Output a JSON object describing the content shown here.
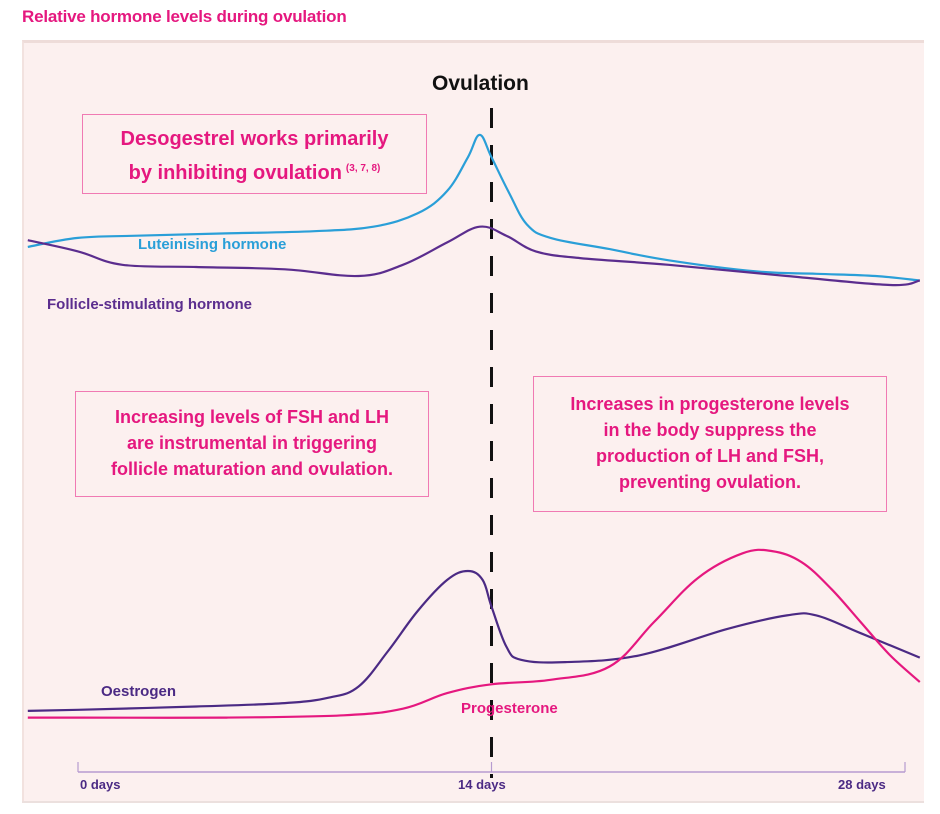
{
  "chart_data": {
    "type": "line",
    "title": "Relative hormone levels during ovulation",
    "xlabel": "",
    "ylabel": "",
    "xlim": [
      0,
      28
    ],
    "ylim": [
      0,
      100
    ],
    "grid": false,
    "x_ticks": [
      {
        "value": 0,
        "label": "0 days"
      },
      {
        "value": 14,
        "label": "14 days"
      },
      {
        "value": 28,
        "label": "28 days"
      }
    ],
    "annotation_line": {
      "x": 14,
      "label": "Ovulation",
      "style": "dashed"
    },
    "callouts": [
      {
        "lines": [
          "Desogestrel works primarily",
          "by inhibiting ovulation"
        ],
        "superscript": "(3, 7, 8)"
      },
      {
        "lines": [
          "Increasing levels of FSH and LH",
          "are instrumental in triggering",
          "follicle maturation and ovulation."
        ]
      },
      {
        "lines": [
          "Increases in progesterone levels",
          "in the body suppress the",
          "production of LH and FSH,",
          "preventing ovulation."
        ]
      }
    ],
    "series": [
      {
        "name": "Luteinising hormone",
        "color": "#2a9fd8",
        "group": "upper",
        "x": [
          -1.7,
          0,
          2,
          5,
          8,
          10,
          11.5,
          12.5,
          13.2,
          13.6,
          14,
          14.6,
          15.2,
          16,
          18,
          20,
          23,
          25,
          27,
          28.5
        ],
        "y": [
          38,
          42,
          43,
          44,
          45,
          47,
          53,
          63,
          78,
          88,
          78,
          62,
          48,
          42,
          37,
          32,
          27,
          26,
          25,
          23
        ]
      },
      {
        "name": "Follicle-stimulating hormone",
        "color": "#5b2d8e",
        "group": "upper",
        "x": [
          -1.7,
          0,
          1.5,
          4,
          7,
          9.5,
          11,
          12.5,
          13.6,
          14.5,
          15.5,
          17,
          20,
          24,
          27.5,
          28.5
        ],
        "y": [
          41,
          36,
          30,
          29,
          28,
          25,
          30,
          40,
          47,
          43,
          36,
          33,
          30,
          25,
          21,
          23
        ]
      },
      {
        "name": "Oestrogen",
        "color": "#4b2a84",
        "group": "lower",
        "x": [
          -1.7,
          0,
          4,
          7,
          8.5,
          9.5,
          10.5,
          11.5,
          12.5,
          13.2,
          13.7,
          14,
          14.5,
          15,
          16.5,
          19,
          22,
          24,
          25,
          26.5,
          28.5
        ],
        "y": [
          5,
          5.5,
          7,
          8.5,
          11,
          16,
          32,
          50,
          64,
          68,
          64,
          52,
          34,
          28,
          27,
          30,
          42,
          48,
          48,
          40,
          29
        ]
      },
      {
        "name": "Progesterone",
        "color": "#e5187f",
        "group": "lower",
        "x": [
          -1.7,
          0,
          5,
          9,
          11,
          12.5,
          14,
          16,
          18,
          19.5,
          21,
          22.5,
          23.5,
          24.5,
          25.5,
          26.5,
          27.5,
          28.5
        ],
        "y": [
          2,
          2,
          2,
          3,
          6,
          13,
          17,
          19,
          25,
          45,
          65,
          76,
          77,
          72,
          60,
          45,
          30,
          18
        ]
      }
    ]
  }
}
